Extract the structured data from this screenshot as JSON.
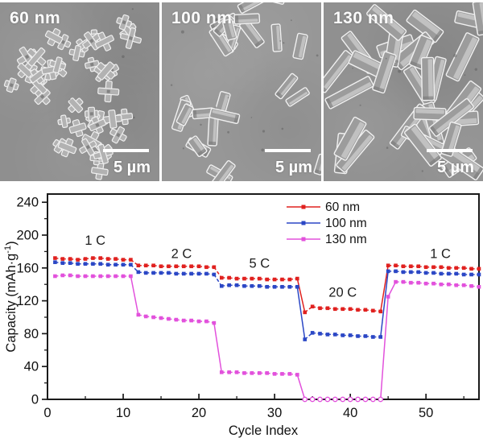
{
  "figure": {
    "panels": [
      {
        "label": "60 nm",
        "scale_label": "5 µm"
      },
      {
        "label": "100 nm",
        "scale_label": "5 µm"
      },
      {
        "label": "130 nm",
        "scale_label": "5 µm"
      }
    ]
  },
  "chart_data": {
    "type": "line",
    "title": "",
    "xlabel": "Cycle Index",
    "ylabel": "Capacity (mAh·g⁻¹)",
    "ylabel_parts": {
      "prefix": "Capacity (mAh·g",
      "sup": "-1",
      "suffix": ")"
    },
    "xlim": [
      0,
      57
    ],
    "ylim": [
      0,
      250
    ],
    "x_major_ticks": [
      0,
      10,
      20,
      30,
      40,
      50
    ],
    "x_minor_ticks": [
      5,
      15,
      25,
      35,
      45,
      55
    ],
    "y_major_ticks": [
      0,
      40,
      80,
      120,
      160,
      200,
      240
    ],
    "y_minor_ticks": [
      20,
      60,
      100,
      140,
      180,
      220
    ],
    "grid": false,
    "legend_position": "top-center",
    "marker": "square",
    "x": [
      1,
      2,
      3,
      4,
      5,
      6,
      7,
      8,
      9,
      10,
      11,
      12,
      13,
      14,
      15,
      16,
      17,
      18,
      19,
      20,
      21,
      22,
      23,
      24,
      25,
      26,
      27,
      28,
      29,
      30,
      31,
      32,
      33,
      34,
      35,
      36,
      37,
      38,
      39,
      40,
      41,
      42,
      43,
      44,
      45,
      46,
      47,
      48,
      49,
      50,
      51,
      52,
      53,
      54,
      55,
      56,
      57
    ],
    "rate_segments": [
      {
        "rate": "1 C",
        "cycles": [
          1,
          11
        ]
      },
      {
        "rate": "2 C",
        "cycles": [
          12,
          22
        ]
      },
      {
        "rate": "5 C",
        "cycles": [
          23,
          33
        ]
      },
      {
        "rate": "20 C",
        "cycles": [
          34,
          44
        ]
      },
      {
        "rate": "1 C",
        "cycles": [
          45,
          57
        ]
      }
    ],
    "series": [
      {
        "name": "60 nm",
        "color": "#e0211f",
        "values": [
          172,
          171,
          171,
          170,
          171,
          172,
          172,
          171,
          171,
          170,
          170,
          163,
          163,
          163,
          162,
          162,
          162,
          162,
          162,
          162,
          161,
          161,
          148,
          148,
          147,
          147,
          147,
          147,
          146,
          146,
          146,
          146,
          147,
          106,
          113,
          111,
          111,
          110,
          110,
          110,
          109,
          109,
          108,
          107,
          163,
          163,
          162,
          162,
          162,
          161,
          161,
          161,
          160,
          160,
          160,
          159,
          159
        ]
      },
      {
        "name": "100 nm",
        "color": "#2b47c5",
        "values": [
          167,
          166,
          166,
          165,
          165,
          165,
          165,
          164,
          164,
          164,
          164,
          155,
          154,
          154,
          154,
          154,
          153,
          153,
          153,
          153,
          153,
          152,
          138,
          139,
          139,
          138,
          138,
          138,
          137,
          137,
          137,
          137,
          137,
          73,
          81,
          80,
          79,
          79,
          78,
          78,
          77,
          77,
          76,
          76,
          156,
          156,
          155,
          155,
          155,
          154,
          154,
          153,
          153,
          153,
          152,
          152,
          152
        ]
      },
      {
        "name": "130 nm",
        "color": "#e251dc",
        "values": [
          150,
          151,
          151,
          150,
          150,
          150,
          150,
          150,
          150,
          150,
          150,
          103,
          101,
          100,
          99,
          98,
          97,
          96,
          96,
          95,
          95,
          93,
          33,
          33,
          33,
          32,
          32,
          32,
          32,
          31,
          31,
          31,
          30,
          0,
          0,
          0,
          0,
          0,
          0,
          0,
          0,
          0,
          0,
          0,
          125,
          143,
          143,
          142,
          142,
          141,
          141,
          140,
          140,
          139,
          139,
          138,
          137
        ]
      }
    ],
    "annotations": [
      {
        "text": "1 C",
        "x": 6.3,
        "y": 194
      },
      {
        "text": "2 C",
        "x": 17.7,
        "y": 178
      },
      {
        "text": "5 C",
        "x": 28.0,
        "y": 166
      },
      {
        "text": "20 C",
        "x": 39.0,
        "y": 131
      },
      {
        "text": "1 C",
        "x": 51.9,
        "y": 178
      }
    ]
  }
}
